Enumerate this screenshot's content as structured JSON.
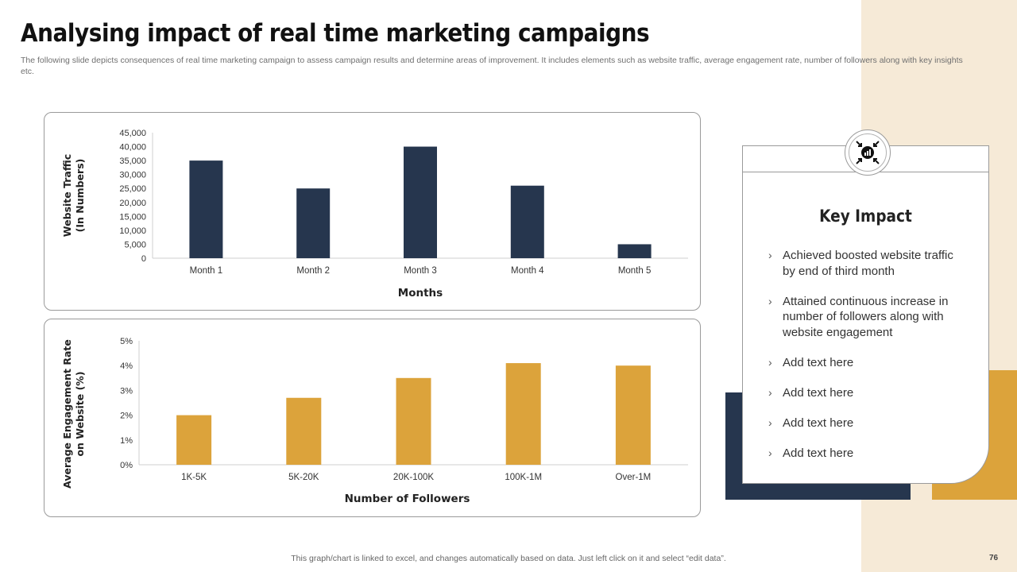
{
  "slide": {
    "title": "Analysing impact of real time marketing campaigns",
    "subtitle": "The following slide depicts consequences of real time marketing campaign to assess campaign results and determine areas of improvement. It includes elements such as website traffic, average engagement rate, number of followers along with key insights etc.",
    "footer_note": "This graph/chart is linked to excel,  and changes automatically based on data. Just left click on it and select “edit data”.",
    "page_number": "76"
  },
  "colors": {
    "navy": "#26364e",
    "gold": "#dca33b",
    "beige_band": "#f6ead7"
  },
  "key_impact": {
    "icon": "compress-arrows-chart-icon",
    "title": "Key Impact",
    "items": [
      "Achieved boosted website traffic by end of third month",
      "Attained continuous increase in number of followers along with website engagement",
      "Add text here",
      "Add text here",
      "Add text here",
      "Add text here"
    ]
  },
  "chart_data": [
    {
      "type": "bar",
      "categories": [
        "Month 1",
        "Month 2",
        "Month 3",
        "Month 4",
        "Month 5"
      ],
      "values": [
        35000,
        25000,
        40000,
        26000,
        5000
      ],
      "xlabel": "Months",
      "ylabel": [
        "Website Traffic",
        "(In Numbers)"
      ],
      "ylim": [
        0,
        45000
      ],
      "yticks": [
        "0",
        "5,000",
        "10,000",
        "15,000",
        "20,000",
        "25,000",
        "30,000",
        "35,000",
        "40,000",
        "45,000"
      ],
      "color": "#26364e",
      "grid": false
    },
    {
      "type": "bar",
      "categories": [
        "1K-5K",
        "5K-20K",
        "20K-100K",
        "100K-1M",
        "Over-1M"
      ],
      "values": [
        2.0,
        2.7,
        3.5,
        4.1,
        4.0
      ],
      "xlabel": "Number of Followers",
      "ylabel": [
        "Average Engagement Rate",
        "on Website (%)"
      ],
      "ylim": [
        0,
        5
      ],
      "yticks": [
        "0%",
        "1%",
        "2%",
        "3%",
        "4%",
        "5%"
      ],
      "color": "#dca33b",
      "grid": false
    }
  ]
}
